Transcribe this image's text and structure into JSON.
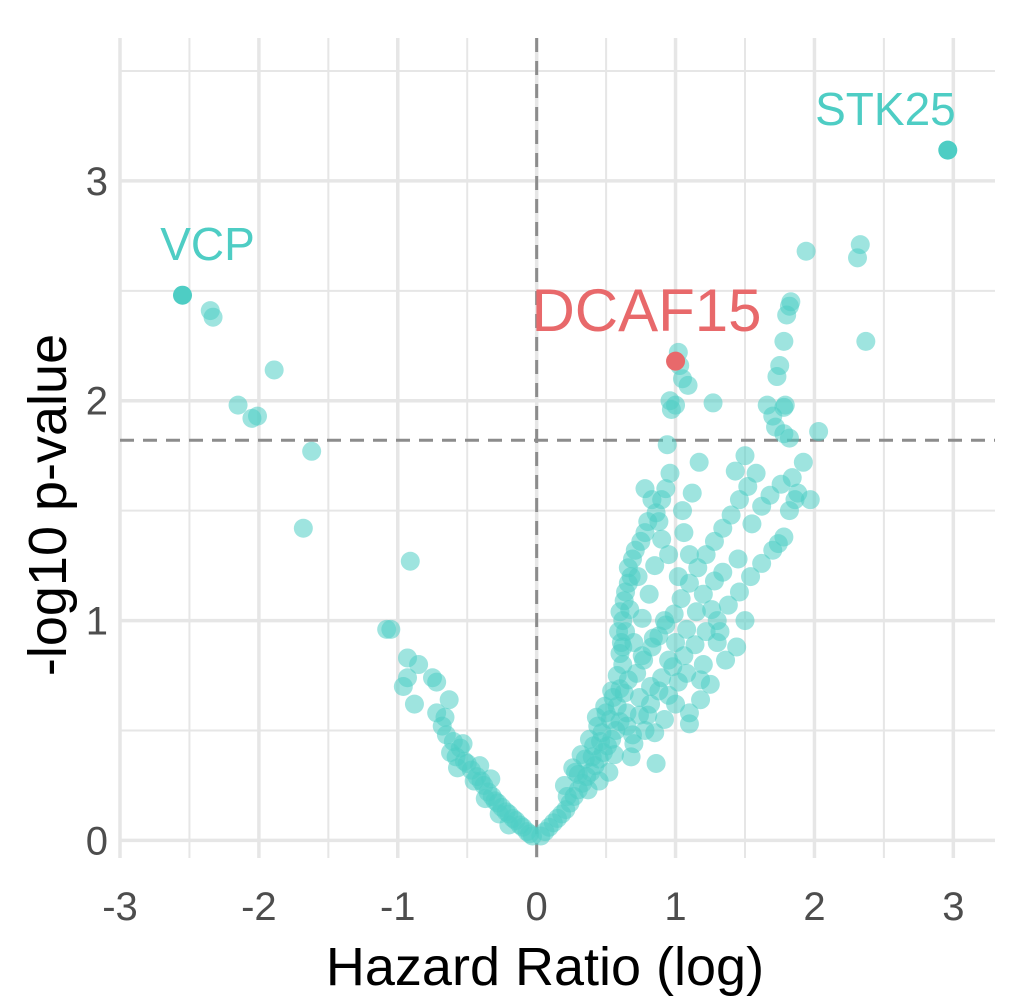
{
  "chart_data": {
    "type": "scatter",
    "title": "",
    "xlabel": "Hazard Ratio (log)",
    "ylabel": "-log10 p-value",
    "xlim": [
      -3.0,
      3.3
    ],
    "ylim": [
      -0.08,
      3.65
    ],
    "x_ticks": [
      -3,
      -2,
      -1,
      0,
      1,
      2,
      3
    ],
    "y_ticks": [
      0,
      1,
      2,
      3
    ],
    "vline_x": 0,
    "hline_y": 1.82,
    "colors": {
      "default": "#4ECDC4",
      "highlight": "#E8696B",
      "grid": "#e6e6e6",
      "refline": "#8c8c8c"
    },
    "labeled_points": [
      {
        "label": "STK25",
        "x": 2.96,
        "y": 3.14,
        "color": "#4ECDC4"
      },
      {
        "label": "VCP",
        "x": -2.55,
        "y": 2.48,
        "color": "#4ECDC4"
      },
      {
        "label": "DCAF15",
        "x": 1.0,
        "y": 2.18,
        "color": "#E8696B"
      }
    ],
    "points": [
      [
        2.33,
        2.71
      ],
      [
        2.31,
        2.65
      ],
      [
        2.37,
        2.27
      ],
      [
        1.94,
        2.68
      ],
      [
        1.83,
        2.45
      ],
      [
        1.82,
        2.43
      ],
      [
        1.8,
        2.39
      ],
      [
        1.78,
        2.27
      ],
      [
        1.75,
        2.16
      ],
      [
        1.73,
        2.11
      ],
      [
        1.79,
        1.98
      ],
      [
        1.78,
        1.97
      ],
      [
        1.66,
        1.98
      ],
      [
        1.7,
        1.93
      ],
      [
        1.72,
        1.88
      ],
      [
        1.78,
        1.85
      ],
      [
        1.82,
        1.83
      ],
      [
        2.03,
        1.86
      ],
      [
        1.02,
        2.22
      ],
      [
        1.03,
        2.16
      ],
      [
        1.05,
        2.1
      ],
      [
        1.09,
        2.07
      ],
      [
        0.96,
        2.0
      ],
      [
        1.0,
        1.98
      ],
      [
        0.97,
        1.96
      ],
      [
        1.27,
        1.99
      ],
      [
        0.94,
        1.8
      ],
      [
        -2.35,
        2.41
      ],
      [
        -2.33,
        2.38
      ],
      [
        -1.89,
        2.14
      ],
      [
        -2.15,
        1.98
      ],
      [
        -2.05,
        1.92
      ],
      [
        -2.01,
        1.93
      ],
      [
        -1.62,
        1.77
      ],
      [
        -1.68,
        1.42
      ],
      [
        -0.91,
        1.27
      ],
      [
        -1.05,
        0.96
      ],
      [
        -1.08,
        0.96
      ],
      [
        -0.93,
        0.83
      ],
      [
        -0.85,
        0.8
      ],
      [
        -0.93,
        0.74
      ],
      [
        -0.96,
        0.7
      ],
      [
        -0.75,
        0.74
      ],
      [
        -0.72,
        0.72
      ],
      [
        -0.63,
        0.64
      ],
      [
        -0.72,
        0.58
      ],
      [
        -0.88,
        0.62
      ],
      [
        -0.68,
        0.52
      ],
      [
        -0.65,
        0.48
      ],
      [
        -0.6,
        0.45
      ],
      [
        -0.55,
        0.42
      ],
      [
        -0.58,
        0.38
      ],
      [
        -0.52,
        0.36
      ],
      [
        -0.5,
        0.35
      ],
      [
        -0.47,
        0.32
      ],
      [
        -0.43,
        0.29
      ],
      [
        -0.4,
        0.27
      ],
      [
        -0.38,
        0.25
      ],
      [
        -0.35,
        0.22
      ],
      [
        -0.32,
        0.2
      ],
      [
        -0.3,
        0.18
      ],
      [
        -0.28,
        0.17
      ],
      [
        -0.25,
        0.15
      ],
      [
        -0.22,
        0.13
      ],
      [
        -0.2,
        0.12
      ],
      [
        -0.17,
        0.1
      ],
      [
        -0.15,
        0.09
      ],
      [
        -0.12,
        0.07
      ],
      [
        -0.1,
        0.06
      ],
      [
        -0.07,
        0.04
      ],
      [
        -0.05,
        0.03
      ],
      [
        -0.03,
        0.02
      ],
      [
        -0.62,
        0.4
      ],
      [
        -0.57,
        0.33
      ],
      [
        -0.45,
        0.27
      ],
      [
        -0.37,
        0.19
      ],
      [
        -0.27,
        0.12
      ],
      [
        -0.2,
        0.07
      ],
      [
        -0.41,
        0.34
      ],
      [
        -0.33,
        0.28
      ],
      [
        -0.53,
        0.44
      ],
      [
        -0.66,
        0.56
      ],
      [
        0.03,
        0.02
      ],
      [
        0.06,
        0.04
      ],
      [
        0.09,
        0.06
      ],
      [
        0.12,
        0.08
      ],
      [
        0.15,
        0.1
      ],
      [
        0.18,
        0.12
      ],
      [
        0.21,
        0.14
      ],
      [
        0.24,
        0.17
      ],
      [
        0.27,
        0.2
      ],
      [
        0.3,
        0.23
      ],
      [
        0.33,
        0.26
      ],
      [
        0.36,
        0.29
      ],
      [
        0.39,
        0.31
      ],
      [
        0.42,
        0.34
      ],
      [
        0.45,
        0.37
      ],
      [
        0.48,
        0.4
      ],
      [
        0.51,
        0.43
      ],
      [
        0.54,
        0.46
      ],
      [
        0.57,
        0.5
      ],
      [
        0.6,
        0.54
      ],
      [
        0.2,
        0.25
      ],
      [
        0.28,
        0.31
      ],
      [
        0.35,
        0.37
      ],
      [
        0.41,
        0.43
      ],
      [
        0.47,
        0.49
      ],
      [
        0.53,
        0.55
      ],
      [
        0.58,
        0.61
      ],
      [
        0.63,
        0.67
      ],
      [
        0.66,
        0.73
      ],
      [
        0.6,
        0.69
      ],
      [
        0.55,
        0.65
      ],
      [
        0.5,
        0.58
      ],
      [
        0.44,
        0.52
      ],
      [
        0.38,
        0.46
      ],
      [
        0.32,
        0.39
      ],
      [
        0.26,
        0.33
      ],
      [
        0.22,
        0.2
      ],
      [
        0.3,
        0.3
      ],
      [
        0.4,
        0.38
      ],
      [
        0.46,
        0.45
      ],
      [
        0.62,
        0.8
      ],
      [
        0.6,
        0.85
      ],
      [
        0.61,
        0.9
      ],
      [
        0.59,
        0.95
      ],
      [
        0.62,
        1.0
      ],
      [
        0.6,
        1.04
      ],
      [
        0.63,
        1.09
      ],
      [
        0.64,
        1.13
      ],
      [
        0.66,
        1.17
      ],
      [
        0.68,
        1.2
      ],
      [
        0.66,
        1.24
      ],
      [
        0.69,
        1.28
      ],
      [
        0.71,
        1.32
      ],
      [
        0.75,
        1.36
      ],
      [
        0.78,
        1.4
      ],
      [
        0.8,
        1.45
      ],
      [
        0.86,
        1.49
      ],
      [
        0.9,
        1.55
      ],
      [
        0.93,
        1.6
      ],
      [
        0.96,
        1.67
      ],
      [
        0.72,
        0.76
      ],
      [
        0.77,
        0.82
      ],
      [
        0.83,
        0.88
      ],
      [
        0.88,
        0.93
      ],
      [
        0.93,
        0.98
      ],
      [
        0.99,
        1.03
      ],
      [
        1.04,
        1.1
      ],
      [
        1.1,
        1.17
      ],
      [
        1.16,
        1.24
      ],
      [
        1.22,
        1.3
      ],
      [
        1.28,
        1.36
      ],
      [
        1.34,
        1.42
      ],
      [
        1.4,
        1.48
      ],
      [
        1.46,
        1.55
      ],
      [
        1.52,
        1.61
      ],
      [
        1.58,
        1.67
      ],
      [
        0.74,
        0.65
      ],
      [
        0.82,
        0.7
      ],
      [
        0.9,
        0.74
      ],
      [
        0.98,
        0.79
      ],
      [
        1.06,
        0.84
      ],
      [
        1.14,
        0.89
      ],
      [
        1.22,
        0.95
      ],
      [
        1.3,
        1.0
      ],
      [
        1.38,
        1.07
      ],
      [
        1.46,
        1.13
      ],
      [
        1.54,
        1.2
      ],
      [
        1.62,
        1.26
      ],
      [
        1.7,
        1.32
      ],
      [
        1.78,
        1.38
      ],
      [
        1.12,
        1.58
      ],
      [
        1.17,
        1.72
      ],
      [
        1.06,
        1.4
      ],
      [
        1.02,
        1.2
      ],
      [
        1.1,
        1.3
      ],
      [
        1.2,
        1.12
      ],
      [
        1.26,
        1.05
      ],
      [
        1.34,
        1.22
      ],
      [
        1.45,
        1.28
      ],
      [
        1.55,
        1.44
      ],
      [
        1.62,
        1.52
      ],
      [
        1.68,
        1.57
      ],
      [
        1.76,
        1.62
      ],
      [
        1.82,
        1.5
      ],
      [
        1.88,
        1.58
      ],
      [
        1.97,
        1.55
      ],
      [
        1.74,
        1.35
      ],
      [
        1.84,
        1.65
      ],
      [
        1.92,
        1.72
      ],
      [
        1.86,
        1.55
      ],
      [
        1.43,
        1.68
      ],
      [
        1.5,
        1.75
      ],
      [
        0.83,
        1.55
      ],
      [
        0.78,
        1.6
      ],
      [
        0.88,
        1.45
      ],
      [
        0.95,
        1.3
      ],
      [
        1.5,
        1.0
      ],
      [
        1.44,
        0.88
      ],
      [
        1.36,
        0.82
      ],
      [
        1.25,
        0.71
      ],
      [
        1.18,
        0.64
      ],
      [
        1.1,
        0.58
      ],
      [
        1.02,
        0.72
      ],
      [
        0.92,
        0.55
      ],
      [
        0.85,
        0.49
      ],
      [
        0.8,
        0.57
      ],
      [
        0.7,
        0.44
      ],
      [
        0.65,
        0.52
      ],
      [
        0.56,
        0.39
      ],
      [
        0.52,
        0.31
      ],
      [
        0.45,
        0.27
      ],
      [
        0.37,
        0.23
      ],
      [
        0.68,
        0.38
      ],
      [
        0.78,
        0.5
      ],
      [
        0.82,
        0.62
      ],
      [
        0.88,
        0.68
      ],
      [
        0.95,
        0.82
      ],
      [
        1.0,
        0.9
      ],
      [
        1.08,
        0.96
      ],
      [
        1.15,
        1.04
      ],
      [
        1.28,
        1.18
      ],
      [
        1.32,
        0.95
      ],
      [
        0.86,
        0.35
      ],
      [
        0.7,
        0.9
      ],
      [
        0.76,
        1.01
      ],
      [
        0.81,
        1.12
      ],
      [
        0.73,
        1.2
      ],
      [
        0.85,
        1.25
      ],
      [
        0.9,
        1.37
      ],
      [
        1.05,
        1.5
      ],
      [
        0.76,
        0.84
      ],
      [
        0.84,
        0.92
      ],
      [
        0.92,
        1.0
      ],
      [
        0.58,
        0.75
      ],
      [
        0.54,
        0.68
      ],
      [
        0.49,
        0.61
      ],
      [
        0.43,
        0.56
      ],
      [
        0.65,
        0.58
      ],
      [
        0.74,
        0.57
      ],
      [
        0.69,
        0.48
      ],
      [
        0.95,
        0.66
      ],
      [
        1.08,
        0.76
      ],
      [
        1.2,
        0.8
      ],
      [
        1.3,
        0.9
      ],
      [
        0.64,
        0.95
      ],
      [
        0.67,
        1.05
      ],
      [
        0.62,
        0.88
      ],
      [
        1.1,
        0.53
      ],
      [
        1.18,
        0.73
      ],
      [
        1.0,
        0.62
      ]
    ]
  }
}
